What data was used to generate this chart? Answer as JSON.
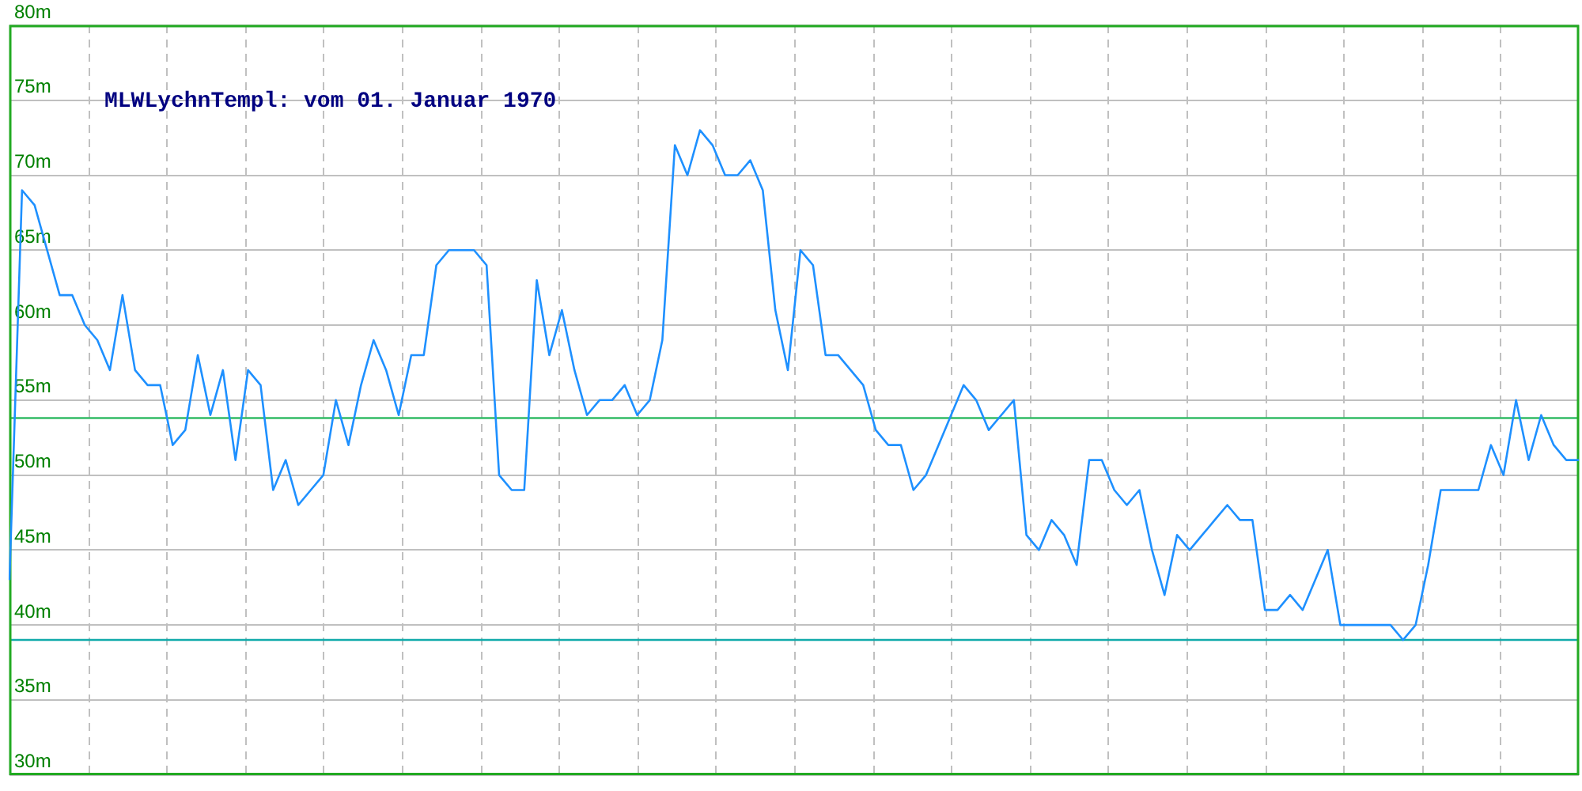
{
  "chart_data": {
    "type": "line",
    "title": "MLWLychnTempl: vom 01. Januar 1970",
    "categories": [
      null,
      null,
      null,
      null,
      null,
      null,
      null,
      null,
      null,
      null,
      null,
      null,
      null,
      null,
      null,
      null,
      null,
      null,
      null,
      null,
      null,
      null,
      null,
      null,
      null,
      null,
      null,
      null,
      null,
      null,
      null,
      null,
      null,
      null,
      null,
      null,
      null,
      null,
      null,
      null,
      null,
      null,
      null,
      null,
      null,
      null,
      null,
      null,
      null,
      null,
      null,
      null,
      null,
      null,
      null,
      null,
      null,
      null,
      null,
      null,
      null,
      null,
      null,
      null,
      null,
      null,
      null,
      null,
      null,
      null,
      null,
      null,
      null,
      null,
      null,
      null,
      null,
      null,
      null,
      null,
      null,
      null,
      null,
      null,
      null,
      null,
      null,
      null,
      null,
      null,
      null,
      null,
      null,
      null,
      null,
      null,
      null,
      null,
      null,
      null,
      null,
      null,
      null,
      null,
      null,
      null,
      null,
      null,
      null,
      null,
      null,
      null,
      null,
      null,
      null,
      null,
      null,
      null,
      null,
      null,
      null,
      null,
      null,
      null,
      null,
      null
    ],
    "series": [
      {
        "color": "#1e90ff",
        "values": [
          43,
          69,
          68,
          65,
          62,
          62,
          60,
          59,
          57,
          62,
          57,
          56,
          56,
          52,
          53,
          58,
          54,
          57,
          51,
          57,
          56,
          49,
          51,
          48,
          49,
          50,
          55,
          52,
          56,
          59,
          57,
          54,
          58,
          58,
          64,
          65,
          65,
          65,
          64,
          50,
          49,
          49,
          63,
          58,
          61,
          57,
          54,
          55,
          55,
          56,
          54,
          55,
          59,
          72,
          70,
          73,
          72,
          70,
          70,
          71,
          69,
          61,
          57,
          65,
          64,
          58,
          58,
          57,
          56,
          53,
          52,
          52,
          49,
          50,
          52,
          54,
          56,
          55,
          53,
          54,
          55,
          46,
          45,
          47,
          46,
          44,
          51,
          51,
          49,
          48,
          49,
          45,
          42,
          46,
          45,
          46,
          47,
          48,
          47,
          47,
          41,
          41,
          42,
          41,
          43,
          45,
          40,
          40,
          40,
          40,
          40,
          39,
          40,
          44,
          49,
          49,
          49,
          49,
          52,
          50,
          55,
          51,
          54,
          52,
          51,
          51
        ]
      }
    ],
    "ylim": [
      30,
      80
    ],
    "yticks": [
      {
        "value": 30,
        "label": "30m"
      },
      {
        "value": 35,
        "label": "35m"
      },
      {
        "value": 40,
        "label": "40m"
      },
      {
        "value": 45,
        "label": "45m"
      },
      {
        "value": 50,
        "label": "50m"
      },
      {
        "value": 55,
        "label": "55m"
      },
      {
        "value": 60,
        "label": "60m"
      },
      {
        "value": 65,
        "label": "65m"
      },
      {
        "value": 70,
        "label": "70m"
      },
      {
        "value": 75,
        "label": "75m"
      },
      {
        "value": 80,
        "label": "80m"
      }
    ],
    "ref_lines": [
      {
        "axis": "y",
        "value": 53.8,
        "color": "#33bb66"
      },
      {
        "axis": "y",
        "value": 39,
        "color": "#11aaaa"
      }
    ],
    "grid": true,
    "legend": false,
    "tick_labels": "y",
    "marker": "none",
    "line_style": "solid"
  }
}
